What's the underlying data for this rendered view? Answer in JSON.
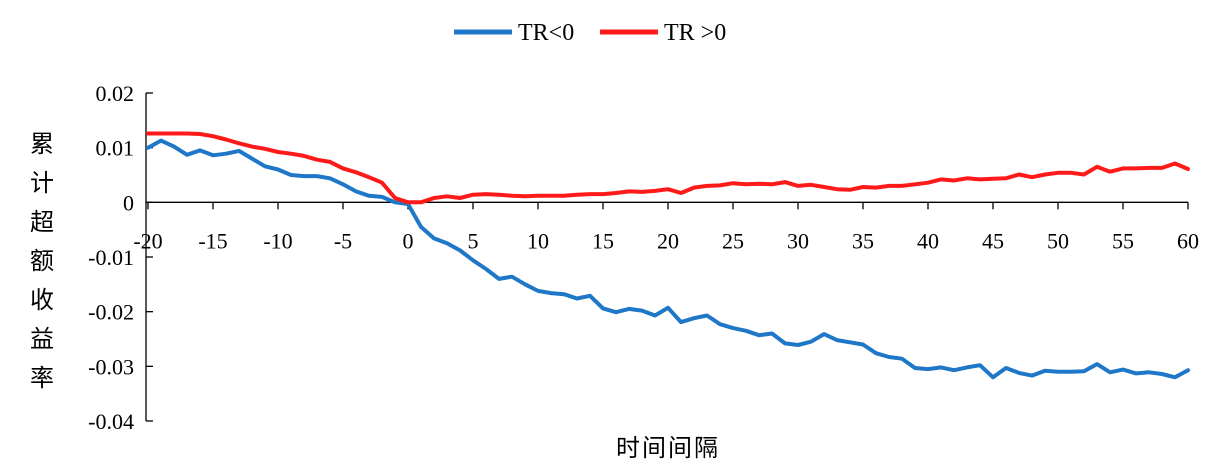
{
  "chart_data": {
    "type": "line",
    "xlabel": "时间间隔",
    "ylabel": "累计超额收益率",
    "xlim": [
      -20,
      60
    ],
    "ylim": [
      -0.04,
      0.02
    ],
    "x_ticks": [
      -20,
      -15,
      -10,
      -5,
      0,
      5,
      10,
      15,
      20,
      25,
      30,
      35,
      40,
      45,
      50,
      55,
      60
    ],
    "y_ticks": [
      0.02,
      0.01,
      0,
      -0.01,
      -0.02,
      -0.03,
      -0.04
    ],
    "y_tick_labels": [
      "0.02",
      "0.01",
      "0",
      "-0.01",
      "-0.02",
      "-0.03",
      "-0.04"
    ],
    "legend_position": "top-center",
    "grid": false,
    "x": [
      -20,
      -19,
      -18,
      -17,
      -16,
      -15,
      -14,
      -13,
      -12,
      -11,
      -10,
      -9,
      -8,
      -7,
      -6,
      -5,
      -4,
      -3,
      -2,
      -1,
      0,
      1,
      2,
      3,
      4,
      5,
      6,
      7,
      8,
      9,
      10,
      11,
      12,
      13,
      14,
      15,
      16,
      17,
      18,
      19,
      20,
      21,
      22,
      23,
      24,
      25,
      26,
      27,
      28,
      29,
      30,
      31,
      32,
      33,
      34,
      35,
      36,
      37,
      38,
      39,
      40,
      41,
      42,
      43,
      44,
      45,
      46,
      47,
      48,
      49,
      50,
      51,
      52,
      53,
      54,
      55,
      56,
      57,
      58,
      59,
      60
    ],
    "series": [
      {
        "name": "TR<0",
        "color": "#1f77c8",
        "values": [
          0.01,
          0.0113,
          0.0102,
          0.0087,
          0.0095,
          0.0086,
          0.0089,
          0.0094,
          0.008,
          0.0066,
          0.006,
          0.005,
          0.0048,
          0.0048,
          0.0044,
          0.0033,
          0.002,
          0.0012,
          0.001,
          0.0,
          -0.0003,
          -0.0045,
          -0.0066,
          -0.0075,
          -0.0088,
          -0.0106,
          -0.0122,
          -0.014,
          -0.0136,
          -0.015,
          -0.0162,
          -0.0166,
          -0.0168,
          -0.0176,
          -0.0171,
          -0.0194,
          -0.0201,
          -0.0195,
          -0.0198,
          -0.0207,
          -0.0193,
          -0.0219,
          -0.0212,
          -0.0207,
          -0.0223,
          -0.023,
          -0.0235,
          -0.0243,
          -0.024,
          -0.0258,
          -0.0261,
          -0.0255,
          -0.0241,
          -0.0252,
          -0.0256,
          -0.026,
          -0.0276,
          -0.0283,
          -0.0286,
          -0.0303,
          -0.0305,
          -0.0302,
          -0.0307,
          -0.0302,
          -0.0298,
          -0.032,
          -0.0303,
          -0.0312,
          -0.0317,
          -0.0308,
          -0.031,
          -0.031,
          -0.0309,
          -0.0296,
          -0.0311,
          -0.0306,
          -0.0313,
          -0.0311,
          -0.0314,
          -0.032,
          -0.0307
        ]
      },
      {
        "name": "TR >0",
        "color": "#ff1a1a",
        "values": [
          0.0126,
          0.0126,
          0.0126,
          0.0126,
          0.0125,
          0.0121,
          0.0115,
          0.0108,
          0.0102,
          0.0098,
          0.0092,
          0.0089,
          0.0085,
          0.0078,
          0.0074,
          0.0062,
          0.0055,
          0.0046,
          0.0036,
          0.0008,
          0.0,
          0.0,
          0.0008,
          0.0011,
          0.0008,
          0.0014,
          0.0015,
          0.0014,
          0.0012,
          0.0011,
          0.0012,
          0.0012,
          0.0012,
          0.0014,
          0.0015,
          0.0015,
          0.0017,
          0.002,
          0.0019,
          0.0021,
          0.0024,
          0.0017,
          0.0027,
          0.003,
          0.0031,
          0.0035,
          0.0033,
          0.0034,
          0.0033,
          0.0037,
          0.003,
          0.0032,
          0.0028,
          0.0024,
          0.0023,
          0.0028,
          0.0027,
          0.003,
          0.003,
          0.0033,
          0.0036,
          0.0042,
          0.004,
          0.0044,
          0.0042,
          0.0043,
          0.0044,
          0.0051,
          0.0046,
          0.0051,
          0.0054,
          0.0054,
          0.0051,
          0.0065,
          0.0056,
          0.0062,
          0.0062,
          0.0063,
          0.0063,
          0.0071,
          0.0061
        ]
      }
    ]
  }
}
